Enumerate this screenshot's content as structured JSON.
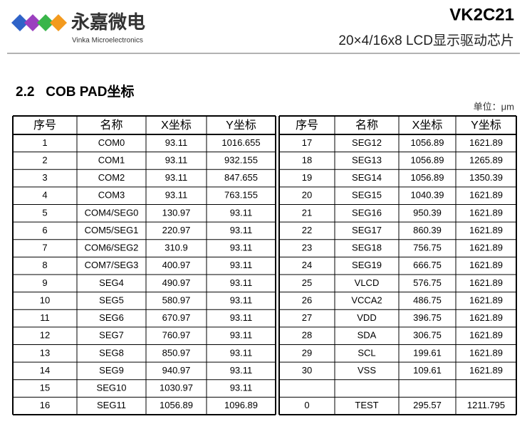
{
  "header": {
    "brand_cn": "永嘉微电",
    "brand_en": "Vinka Microelectronics",
    "model": "VK2C21",
    "subtitle": "20×4/16x8 LCD显示驱动芯片"
  },
  "section": {
    "title": "2.2   COB PAD坐标",
    "unit": "单位：μm"
  },
  "table": {
    "columns": [
      "序号",
      "名称",
      "X坐标",
      "Y坐标"
    ],
    "left_rows": [
      [
        "1",
        "COM0",
        "93.11",
        "1016.655"
      ],
      [
        "2",
        "COM1",
        "93.11",
        "932.155"
      ],
      [
        "3",
        "COM2",
        "93.11",
        "847.655"
      ],
      [
        "4",
        "COM3",
        "93.11",
        "763.155"
      ],
      [
        "5",
        "COM4/SEG0",
        "130.97",
        "93.11"
      ],
      [
        "6",
        "COM5/SEG1",
        "220.97",
        "93.11"
      ],
      [
        "7",
        "COM6/SEG2",
        "310.9",
        "93.11"
      ],
      [
        "8",
        "COM7/SEG3",
        "400.97",
        "93.11"
      ],
      [
        "9",
        "SEG4",
        "490.97",
        "93.11"
      ],
      [
        "10",
        "SEG5",
        "580.97",
        "93.11"
      ],
      [
        "11",
        "SEG6",
        "670.97",
        "93.11"
      ],
      [
        "12",
        "SEG7",
        "760.97",
        "93.11"
      ],
      [
        "13",
        "SEG8",
        "850.97",
        "93.11"
      ],
      [
        "14",
        "SEG9",
        "940.97",
        "93.11"
      ],
      [
        "15",
        "SEG10",
        "1030.97",
        "93.11"
      ],
      [
        "16",
        "SEG11",
        "1056.89",
        "1096.89"
      ]
    ],
    "right_rows": [
      [
        "17",
        "SEG12",
        "1056.89",
        "1621.89"
      ],
      [
        "18",
        "SEG13",
        "1056.89",
        "1265.89"
      ],
      [
        "19",
        "SEG14",
        "1056.89",
        "1350.39"
      ],
      [
        "20",
        "SEG15",
        "1040.39",
        "1621.89"
      ],
      [
        "21",
        "SEG16",
        "950.39",
        "1621.89"
      ],
      [
        "22",
        "SEG17",
        "860.39",
        "1621.89"
      ],
      [
        "23",
        "SEG18",
        "756.75",
        "1621.89"
      ],
      [
        "24",
        "SEG19",
        "666.75",
        "1621.89"
      ],
      [
        "25",
        "VLCD",
        "576.75",
        "1621.89"
      ],
      [
        "26",
        "VCCA2",
        "486.75",
        "1621.89"
      ],
      [
        "27",
        "VDD",
        "396.75",
        "1621.89"
      ],
      [
        "28",
        "SDA",
        "306.75",
        "1621.89"
      ],
      [
        "29",
        "SCL",
        "199.61",
        "1621.89"
      ],
      [
        "30",
        "VSS",
        "109.61",
        "1621.89"
      ],
      null,
      [
        "0",
        "TEST",
        "295.57",
        "1211.795"
      ]
    ]
  }
}
